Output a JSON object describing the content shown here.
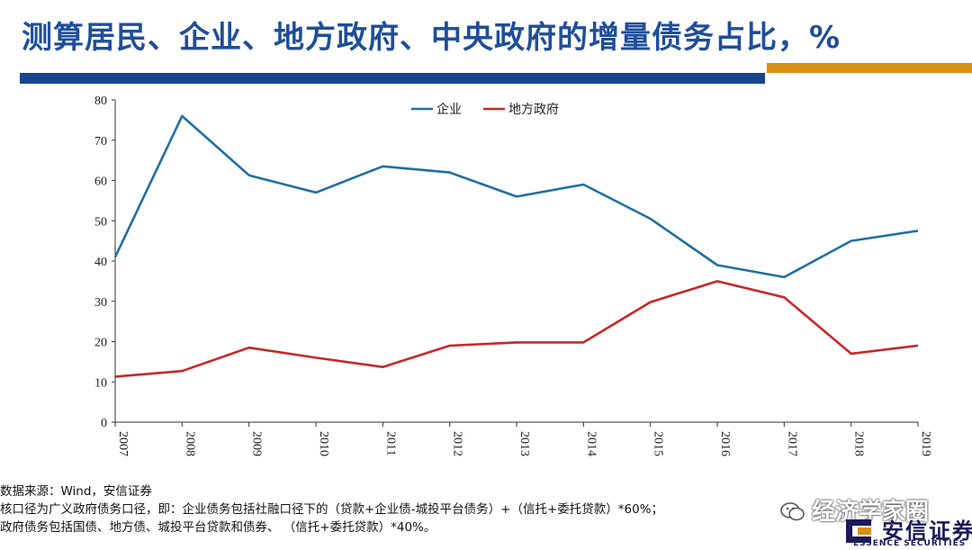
{
  "header": {
    "title": "测算居民、企业、地方政府、中央政府的增量债务占比，%"
  },
  "chart_data": {
    "type": "line",
    "x": [
      "2007",
      "2008",
      "2009",
      "2010",
      "2011",
      "2012",
      "2013",
      "2014",
      "2015",
      "2016",
      "2017",
      "2018",
      "2019"
    ],
    "series": [
      {
        "name": "企业",
        "color": "#1f6fa3",
        "values": [
          41,
          76,
          61.3,
          57,
          63.5,
          62,
          56,
          59,
          50.5,
          39,
          36,
          45,
          47.5
        ]
      },
      {
        "name": "地方政府",
        "color": "#c8282a",
        "values": [
          11.3,
          12.7,
          18.5,
          16,
          13.7,
          19,
          19.8,
          19.8,
          29.8,
          35,
          31,
          17,
          19
        ]
      }
    ],
    "y_ticks": [
      "0",
      "10",
      "20",
      "30",
      "40",
      "50",
      "60",
      "70",
      "80"
    ],
    "ylim": [
      0,
      80
    ],
    "legend": "top-center",
    "grid": false
  },
  "notes": {
    "source": "数据来源：Wind，安信证券",
    "line1": "核口径为广义政府债务口径，即：企业债务包括社融口径下的（贷款+企业债-城投平台债务）+（信托+委托贷款）*60%；",
    "line2": "政府债务包括国债、地方债、城投平台贷款和债券、 （信托+委托贷款）*40%。"
  },
  "watermark": "经济学家圈",
  "logo": {
    "cn": "安信证券",
    "en": "ESSENCE SECURITIES"
  }
}
